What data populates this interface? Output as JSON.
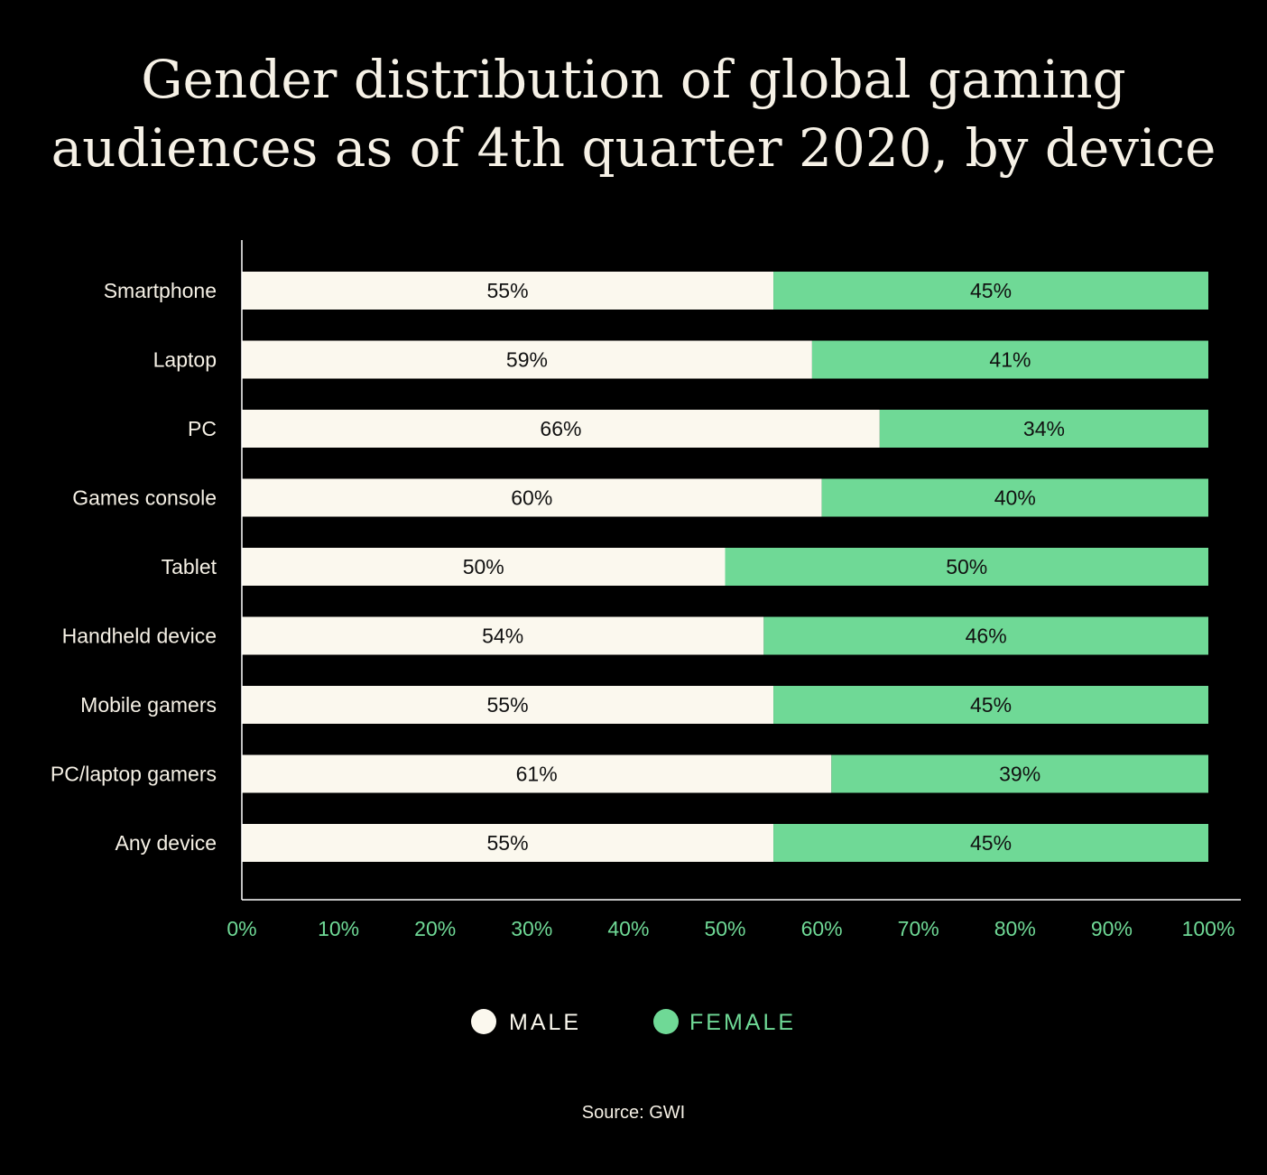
{
  "title_lines": [
    "Gender distribution of global gaming",
    "audiences as of 4th quarter 2020, by device"
  ],
  "source": "Source: GWI",
  "colors": {
    "background": "#000000",
    "male": "#fbf8ee",
    "female": "#6fd996",
    "axis_text": "#6fd996",
    "label_text": "#f6f1e6",
    "value_text": "#111111"
  },
  "chart_data": {
    "type": "bar",
    "orientation": "horizontal",
    "stacked": true,
    "title": "Gender distribution of global gaming audiences as of 4th quarter 2020, by device",
    "categories": [
      "Smartphone",
      "Laptop",
      "PC",
      "Games console",
      "Tablet",
      "Handheld device",
      "Mobile gamers",
      "PC/laptop gamers",
      "Any device"
    ],
    "series": [
      {
        "name": "MALE",
        "values": [
          55,
          59,
          66,
          60,
          50,
          54,
          55,
          61,
          55
        ],
        "labels": [
          "55%",
          "59%",
          "66%",
          "60%",
          "50%",
          "54%",
          "55%",
          "61%",
          "55%"
        ]
      },
      {
        "name": "FEMALE",
        "values": [
          45,
          41,
          34,
          40,
          50,
          46,
          45,
          39,
          45
        ],
        "labels": [
          "45%",
          "41%",
          "34%",
          "40%",
          "50%",
          "46%",
          "45%",
          "39%",
          "45%"
        ]
      }
    ],
    "xlim": [
      0,
      100
    ],
    "xticks": [
      0,
      10,
      20,
      30,
      40,
      50,
      60,
      70,
      80,
      90,
      100
    ],
    "xtick_labels": [
      "0%",
      "10%",
      "20%",
      "30%",
      "40%",
      "50%",
      "60%",
      "70%",
      "80%",
      "90%",
      "100%"
    ],
    "legend_position": "bottom-center",
    "grid": false
  }
}
